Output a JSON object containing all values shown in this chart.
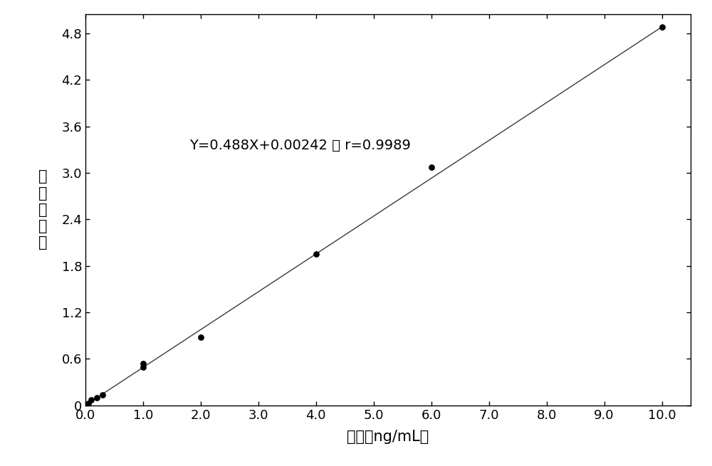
{
  "x_data": [
    0.05,
    0.1,
    0.2,
    0.3,
    1.0,
    1.0,
    2.0,
    4.0,
    6.0,
    10.0
  ],
  "y_data": [
    0.03,
    0.07,
    0.1,
    0.14,
    0.49,
    0.54,
    0.88,
    1.95,
    3.07,
    4.88
  ],
  "slope": 0.488,
  "intercept": 0.00242,
  "x_line_start": 0.0,
  "x_line_end": 10.0,
  "equation_text": "Y=0.488X+0.00242 ， r=0.9989",
  "equation_x": 1.8,
  "equation_y": 3.3,
  "xlabel": "浓度（ng/mL）",
  "ylabel_chars": [
    "浓",
    "度",
    "响",
    "应",
    "値"
  ],
  "xlim": [
    0.0,
    10.5
  ],
  "ylim": [
    0.0,
    5.05
  ],
  "xticks": [
    0.0,
    1.0,
    2.0,
    3.0,
    4.0,
    5.0,
    6.0,
    7.0,
    8.0,
    9.0,
    10.0
  ],
  "yticks": [
    0.0,
    0.6,
    1.2,
    1.8,
    2.4,
    3.0,
    3.6,
    4.2,
    4.8
  ],
  "ytick_labels": [
    "0",
    "0.6",
    "1.2",
    "1.8",
    "2.4",
    "3.0",
    "3.6",
    "4.2",
    "4.8"
  ],
  "xtick_labels": [
    "0.0",
    "1.0",
    "2.0",
    "3.0",
    "4.0",
    "5.0",
    "6.0",
    "7.0",
    "8.0",
    "9.0",
    "10.0"
  ],
  "line_color": "#3a3a3a",
  "dot_color": "#000000",
  "background_color": "#ffffff",
  "dot_size": 40,
  "line_width": 1.0,
  "fontsize_label": 15,
  "fontsize_tick": 13,
  "fontsize_eq": 14,
  "fontsize_ylabel": 15
}
